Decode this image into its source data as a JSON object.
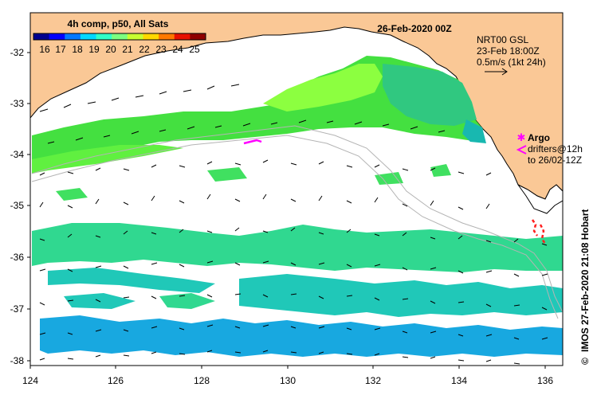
{
  "map": {
    "date_title": "26-Feb-2020 00Z",
    "colorbar": {
      "title": "4h comp, p50, All Sats",
      "ticks": [
        "16",
        "17",
        "18",
        "19",
        "20",
        "21",
        "22",
        "23",
        "24",
        "25"
      ],
      "colors": [
        "#00008f",
        "#0000ff",
        "#0078ff",
        "#00d8ff",
        "#30ffc8",
        "#7cff80",
        "#c8ff30",
        "#ffd800",
        "#ff7800",
        "#e81000",
        "#8f0000"
      ]
    },
    "current_info": {
      "line1": "NRT00 GSL",
      "line2": "23-Feb 18:00Z",
      "line3": "0.5m/s (1kt 24h)"
    },
    "argo_legend": {
      "argo_label": "Argo",
      "drifter_line1": "drifters@12h",
      "drifter_line2": "to 26/02-12Z",
      "argo_color": "#ff00ff",
      "drifter_color": "#ff00ff"
    },
    "credit": "IMOS 27-Feb-2020 21:08 Hobart",
    "copyright_symbol": "©",
    "x_ticks": [
      "124",
      "126",
      "128",
      "130",
      "132",
      "134",
      "136"
    ],
    "y_ticks": [
      "-32",
      "-33",
      "-34",
      "-35",
      "-36",
      "-37",
      "-38"
    ],
    "colors": {
      "land": "#fac896",
      "coast": "#000000",
      "isobath": "#b4b4b4",
      "background": "#ffffff"
    }
  }
}
